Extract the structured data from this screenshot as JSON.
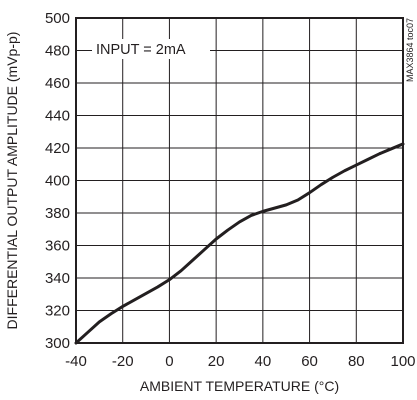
{
  "chart_data": {
    "type": "line",
    "title": "",
    "xlabel": "AMBIENT TEMPERATURE (°C)",
    "ylabel": "DIFFERENTIAL OUTPUT AMPLITUDE (mVp-p)",
    "xlim": [
      -40,
      100
    ],
    "ylim": [
      300,
      500
    ],
    "xticks": [
      -40,
      -20,
      0,
      20,
      40,
      60,
      80,
      100
    ],
    "yticks": [
      300,
      320,
      340,
      360,
      380,
      400,
      420,
      440,
      460,
      480,
      500
    ],
    "grid": true,
    "annotation": "INPUT = 2mA",
    "side_code": "MAX3864 toc07",
    "series": [
      {
        "x": [
          -40,
          -35,
          -30,
          -25,
          -20,
          -15,
          -10,
          -5,
          0,
          5,
          10,
          15,
          20,
          25,
          30,
          35,
          40,
          45,
          50,
          55,
          60,
          65,
          70,
          75,
          80,
          85,
          90,
          95,
          100
        ],
        "y": [
          300,
          306.5,
          313,
          318,
          322.5,
          326.5,
          330.5,
          334.5,
          339,
          344.5,
          351,
          357.5,
          364,
          369.5,
          374.5,
          378.5,
          381,
          383,
          385,
          388,
          392.5,
          397.5,
          402,
          406,
          409.5,
          413,
          416.5,
          419.5,
          422.5
        ]
      }
    ]
  }
}
